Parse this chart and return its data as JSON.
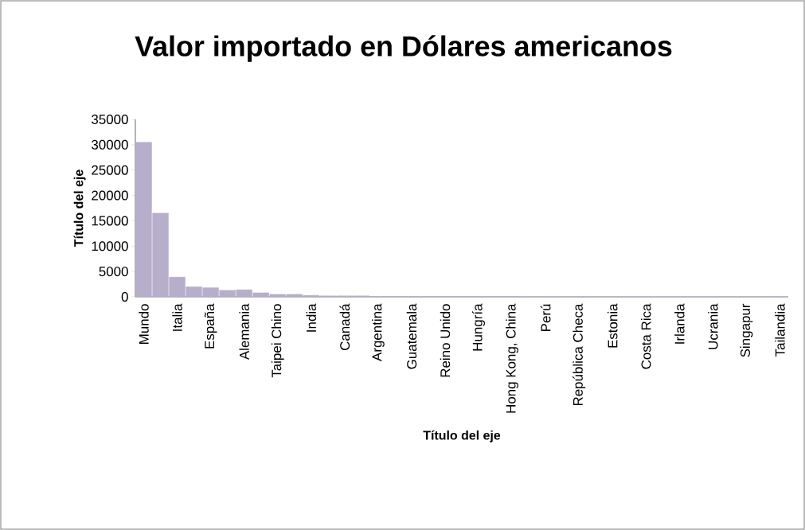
{
  "chart_data": {
    "type": "bar",
    "title": "Valor importado en Dólares americanos",
    "xlabel": "Título del eje",
    "ylabel": "Título del eje",
    "categories": [
      "Mundo",
      null,
      "Italia",
      null,
      "España",
      null,
      "Alemania",
      null,
      "Taipei Chino",
      null,
      "India",
      null,
      "Canadá",
      null,
      "Argentina",
      null,
      "Guatemala",
      null,
      "Reino Unido",
      null,
      "Hungría",
      null,
      "Hong Kong, China",
      null,
      "Perú",
      null,
      "República Checa",
      null,
      "Estonia",
      null,
      "Costa Rica",
      null,
      "Irlanda",
      null,
      "Ucrania",
      null,
      "Singapur",
      null,
      "Tailandia"
    ],
    "values": [
      30500,
      16500,
      3900,
      2000,
      1800,
      1300,
      1400,
      800,
      500,
      500,
      300,
      200,
      200,
      200,
      100,
      100,
      100,
      100,
      100,
      100,
      100,
      100,
      100,
      0,
      0,
      0,
      0,
      0,
      0,
      0,
      0,
      0,
      0,
      0,
      0,
      0,
      0,
      0,
      0
    ],
    "color": "#b6aecb",
    "ylim": [
      0,
      35000
    ],
    "yticks": [
      0,
      5000,
      10000,
      15000,
      20000,
      25000,
      30000,
      35000
    ],
    "grid": false
  }
}
